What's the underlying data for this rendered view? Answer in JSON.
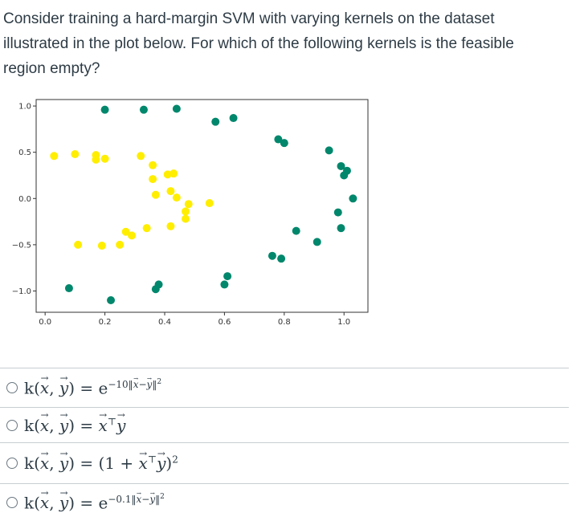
{
  "question": {
    "text": "Consider training a hard-margin SVM with varying kernels on the dataset illustrated in the plot below. For which of the following kernels is the feasible region empty?"
  },
  "chart_data": {
    "type": "scatter",
    "title": "",
    "xlabel": "",
    "ylabel": "",
    "xlim": [
      -0.03,
      1.08
    ],
    "ylim": [
      -1.23,
      1.07
    ],
    "xticks": [
      "0.0",
      "0.2",
      "0.4",
      "0.6",
      "0.8",
      "1.0"
    ],
    "xtick_values": [
      0.0,
      0.2,
      0.4,
      0.6,
      0.8,
      1.0
    ],
    "yticks": [
      "1.0",
      "0.5",
      "0.0",
      "−0.5",
      "−1.0"
    ],
    "ytick_values": [
      1.0,
      0.5,
      0.0,
      -0.5,
      -1.0
    ],
    "grid": false,
    "series": [
      {
        "color": "#ffee00",
        "points": [
          [
            0.03,
            0.46
          ],
          [
            0.1,
            0.48
          ],
          [
            0.17,
            0.47
          ],
          [
            0.17,
            0.42
          ],
          [
            0.2,
            0.43
          ],
          [
            0.32,
            0.46
          ],
          [
            0.36,
            0.36
          ],
          [
            0.36,
            0.21
          ],
          [
            0.41,
            0.26
          ],
          [
            0.43,
            0.27
          ],
          [
            0.37,
            0.04
          ],
          [
            0.42,
            0.08
          ],
          [
            0.44,
            0.01
          ],
          [
            0.48,
            -0.06
          ],
          [
            0.47,
            -0.14
          ],
          [
            0.47,
            -0.22
          ],
          [
            0.42,
            -0.3
          ],
          [
            0.55,
            -0.05
          ],
          [
            0.34,
            -0.32
          ],
          [
            0.27,
            -0.36
          ],
          [
            0.29,
            -0.4
          ],
          [
            0.25,
            -0.5
          ],
          [
            0.19,
            -0.51
          ],
          [
            0.11,
            -0.5
          ]
        ]
      },
      {
        "color": "#00876c",
        "points": [
          [
            0.2,
            0.96
          ],
          [
            0.33,
            0.96
          ],
          [
            0.44,
            0.97
          ],
          [
            0.57,
            0.83
          ],
          [
            0.63,
            0.87
          ],
          [
            0.78,
            0.64
          ],
          [
            0.8,
            0.6
          ],
          [
            0.95,
            0.52
          ],
          [
            0.99,
            0.35
          ],
          [
            1.01,
            0.3
          ],
          [
            1.0,
            0.25
          ],
          [
            1.03,
            0.0
          ],
          [
            0.98,
            -0.15
          ],
          [
            0.99,
            -0.32
          ],
          [
            0.84,
            -0.35
          ],
          [
            0.91,
            -0.47
          ],
          [
            0.76,
            -0.62
          ],
          [
            0.79,
            -0.65
          ],
          [
            0.61,
            -0.84
          ],
          [
            0.6,
            -0.93
          ],
          [
            0.38,
            -0.93
          ],
          [
            0.37,
            -0.98
          ],
          [
            0.08,
            -0.97
          ],
          [
            0.22,
            -1.1
          ]
        ]
      }
    ]
  },
  "options": [
    {
      "id": "op1",
      "formula_html": "k(<span class=\"vec\">x</span>, <span class=\"vec\">y</span>) = e<sup>−10‖<span class=\"vec\">x</span>−<span class=\"vec\">y</span>‖<sup>2</sup></sup>"
    },
    {
      "id": "op2",
      "formula_html": "k(<span class=\"vec\">x</span>, <span class=\"vec\">y</span>) = <span class=\"vec\">x</span><sup>⊤</sup><span class=\"vec\">y</span>"
    },
    {
      "id": "op3",
      "formula_html": "k(<span class=\"vec\">x</span>, <span class=\"vec\">y</span>) = (1 + <span class=\"vec\">x</span><sup>⊤</sup><span class=\"vec\">y</span>)<sup>2</sup>"
    },
    {
      "id": "op4",
      "formula_html": "k(<span class=\"vec\">x</span>, <span class=\"vec\">y</span>) = e<sup>−0.1‖<span class=\"vec\">x</span>−<span class=\"vec\">y</span>‖<sup>2</sup></sup>"
    }
  ]
}
